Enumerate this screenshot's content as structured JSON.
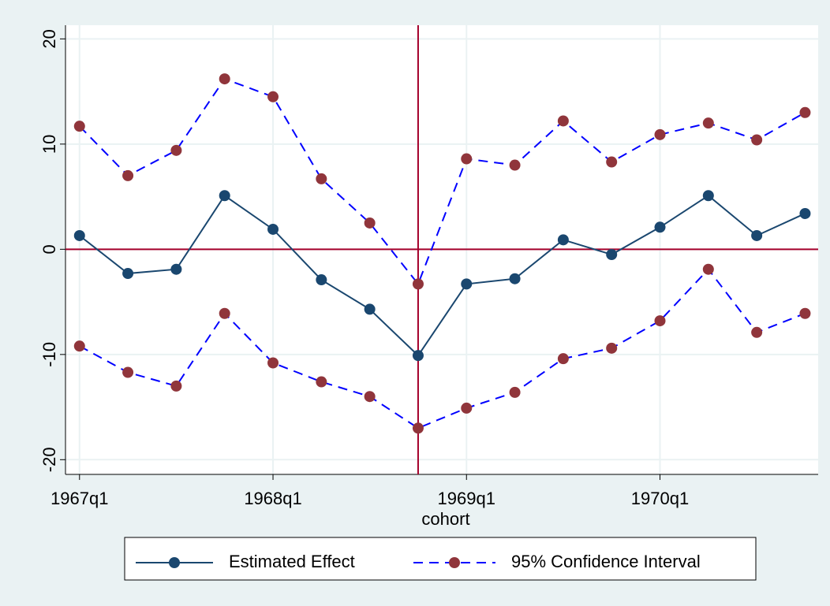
{
  "chart_data": {
    "type": "line",
    "x_label": "cohort",
    "x": [
      28,
      29,
      30,
      31,
      32,
      33,
      34,
      35,
      36,
      37,
      38,
      39,
      40,
      41,
      42,
      43
    ],
    "xlim": [
      27.71,
      43.27
    ],
    "xticks": [
      {
        "value": 28,
        "label": "1967q1"
      },
      {
        "value": 32,
        "label": "1968q1"
      },
      {
        "value": 36,
        "label": "1969q1"
      },
      {
        "value": 40,
        "label": "1970q1"
      }
    ],
    "ylim": [
      -21.4,
      21.3
    ],
    "yticks": [
      -20,
      -10,
      0,
      10,
      20
    ],
    "grid": true,
    "series": [
      {
        "name": "Estimated Effect",
        "color": "#1a476f",
        "marker_color": "#1a476f",
        "dash": false,
        "values": [
          1.3,
          -2.3,
          -1.9,
          5.1,
          1.9,
          -2.9,
          -5.7,
          -10.1,
          -3.3,
          -2.8,
          0.9,
          -0.5,
          2.1,
          5.1,
          1.3,
          3.4
        ]
      },
      {
        "name": "95% Confidence Interval",
        "color": "#0000ff",
        "marker_color": "#90353b",
        "dash": true,
        "values": [
          11.7,
          7.0,
          9.4,
          16.2,
          14.5,
          6.7,
          2.5,
          -3.3,
          8.6,
          8.0,
          12.2,
          8.3,
          10.9,
          12.0,
          10.4,
          13.0
        ],
        "lower": [
          -9.2,
          -11.7,
          -13.0,
          -6.1,
          -10.8,
          -12.6,
          -14.0,
          -17.0,
          -15.1,
          -13.6,
          -10.4,
          -9.4,
          -6.8,
          -1.9,
          -7.9,
          -6.1
        ]
      }
    ],
    "reference_lines": {
      "color": "#a5002b",
      "x": [
        35
      ],
      "y": [
        0
      ]
    },
    "legend": "bottom"
  }
}
